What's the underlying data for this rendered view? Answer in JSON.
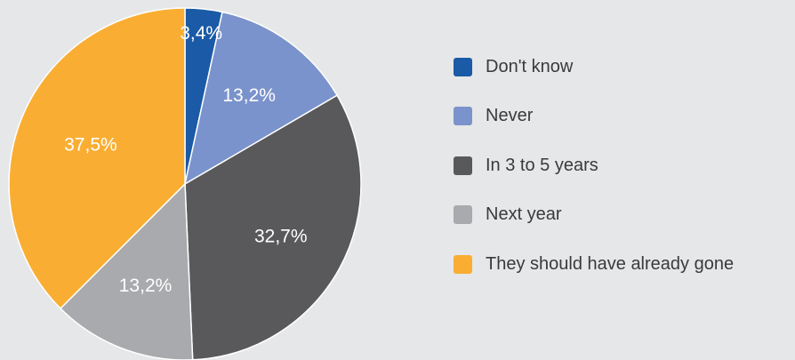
{
  "chart_data": {
    "type": "pie",
    "slices": [
      {
        "label": "Don't know",
        "value": 3.4,
        "value_label": "3,4%",
        "color": "#1a5aa6"
      },
      {
        "label": "Never",
        "value": 13.2,
        "value_label": "13,2%",
        "color": "#7b93cc"
      },
      {
        "label": "In 3 to 5 years",
        "value": 32.7,
        "value_label": "32,7%",
        "color": "#59595b"
      },
      {
        "label": "Next year",
        "value": 13.2,
        "value_label": "13,2%",
        "color": "#a9aaad"
      },
      {
        "label": "They should have already gone",
        "value": 37.5,
        "value_label": "37,5%",
        "color": "#f9ae33"
      }
    ],
    "start_angle": "12 o'clock",
    "direction": "clockwise",
    "legend_position": "right"
  }
}
